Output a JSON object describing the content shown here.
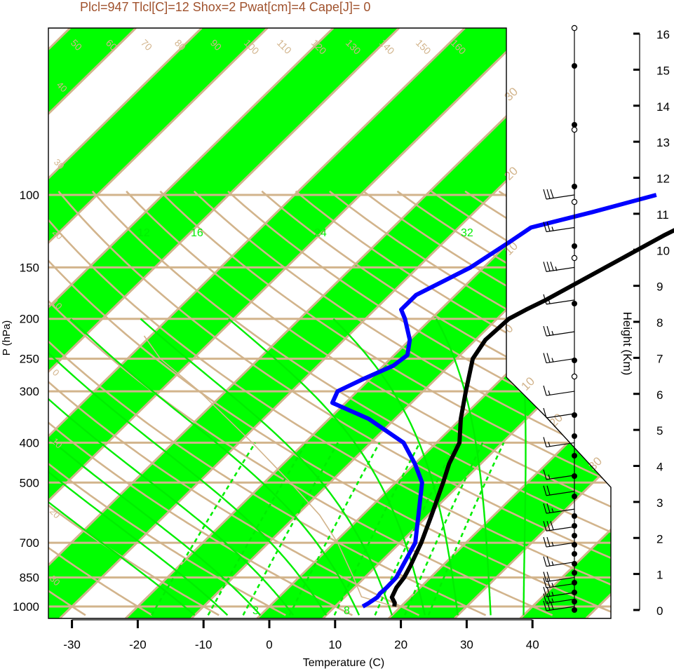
{
  "title": "Plcl=947 Tlcl[C]=12 Shox=2 Pwat[cm]=4 Cape[J]= 0",
  "colors": {
    "green_band": "#00ff00",
    "tan": "#d2b48c",
    "temp": "#000000",
    "dewpoint": "#0000ff",
    "mixing": "#00ee00",
    "title": "#a0522d"
  },
  "chart_data": {
    "type": "skew-t",
    "title": "Plcl=947 Tlcl[C]=12 Shox=2 Pwat[cm]=4 Cape[J]= 0",
    "xlabel": "Temperature (C)",
    "ylabel": "P (hPa)",
    "height_label": "Height (Km)",
    "xlim": [
      -33,
      40
    ],
    "ylim": [
      1050,
      100
    ],
    "pressure_ticks": [
      1000,
      850,
      700,
      500,
      400,
      300,
      250,
      200,
      150,
      100
    ],
    "pressure_tick_labels": [
      "1000",
      "850",
      "700",
      "500",
      "400",
      "300",
      "250",
      "200",
      "150",
      "100"
    ],
    "temperature_ticks": [
      -30,
      -20,
      -10,
      0,
      10,
      20,
      30,
      40
    ],
    "temperature_tick_labels": [
      "-30",
      "-20",
      "-10",
      "0",
      "10",
      "20",
      "30",
      "40"
    ],
    "height_ticks": [
      0,
      1,
      2,
      3,
      4,
      5,
      6,
      7,
      8,
      9,
      10,
      11,
      12,
      13,
      14,
      15,
      16
    ],
    "height_tick_labels": [
      "0",
      "1",
      "2",
      "3",
      "4",
      "5",
      "6",
      "7",
      "8",
      "9",
      "10",
      "11",
      "12",
      "13",
      "14",
      "15",
      "16"
    ],
    "mixing_ratio_labels": [
      "3",
      "8",
      "12",
      "16",
      "24",
      "32"
    ],
    "potential_temp_labels": [
      "50",
      "60",
      "70",
      "80",
      "90",
      "100",
      "110",
      "120",
      "130",
      "140",
      "150",
      "160"
    ],
    "isotherm_labels": [
      "30",
      "20",
      "10",
      "0",
      "-10",
      "-20",
      "-30",
      "-40"
    ],
    "temperature_profile": [
      {
        "p": 1000,
        "t": 19.0
      },
      {
        "p": 980,
        "t": 18.5
      },
      {
        "p": 950,
        "t": 17.2
      },
      {
        "p": 900,
        "t": 16.4
      },
      {
        "p": 850,
        "t": 16.0
      },
      {
        "p": 800,
        "t": 15.2
      },
      {
        "p": 700,
        "t": 13.2
      },
      {
        "p": 600,
        "t": 10.5
      },
      {
        "p": 500,
        "t": 7.2
      },
      {
        "p": 450,
        "t": 5.2
      },
      {
        "p": 400,
        "t": 3.5
      },
      {
        "p": 350,
        "t": 0.0
      },
      {
        "p": 300,
        "t": -3.5
      },
      {
        "p": 250,
        "t": -7.5
      },
      {
        "p": 225,
        "t": -8.5
      },
      {
        "p": 200,
        "t": -8.2
      },
      {
        "p": 190,
        "t": -7.0
      },
      {
        "p": 180,
        "t": -5.5
      },
      {
        "p": 150,
        "t": -1.5
      },
      {
        "p": 125,
        "t": 2.5
      },
      {
        "p": 110,
        "t": 6.0
      },
      {
        "p": 100,
        "t": 10.0
      }
    ],
    "dewpoint_profile": [
      {
        "p": 1000,
        "t": 14.2
      },
      {
        "p": 980,
        "t": 14.6
      },
      {
        "p": 950,
        "t": 15.0
      },
      {
        "p": 930,
        "t": 14.8
      },
      {
        "p": 900,
        "t": 14.9
      },
      {
        "p": 850,
        "t": 14.8
      },
      {
        "p": 700,
        "t": 12.3
      },
      {
        "p": 600,
        "t": 8.5
      },
      {
        "p": 500,
        "t": 4.0
      },
      {
        "p": 450,
        "t": 0.0
      },
      {
        "p": 400,
        "t": -5.0
      },
      {
        "p": 350,
        "t": -14.0
      },
      {
        "p": 320,
        "t": -22.0
      },
      {
        "p": 300,
        "t": -23.0
      },
      {
        "p": 280,
        "t": -21.0
      },
      {
        "p": 260,
        "t": -18.5
      },
      {
        "p": 245,
        "t": -18.0
      },
      {
        "p": 225,
        "t": -20.0
      },
      {
        "p": 200,
        "t": -24.0
      },
      {
        "p": 190,
        "t": -26.0
      },
      {
        "p": 175,
        "t": -26.0
      },
      {
        "p": 150,
        "t": -22.0
      },
      {
        "p": 130,
        "t": -20.0
      },
      {
        "p": 120,
        "t": -19.0
      },
      {
        "p": 110,
        "t": -12.0
      },
      {
        "p": 100,
        "t": -5.0
      }
    ],
    "wind_profile": [
      {
        "p": 1000,
        "speed": 30
      },
      {
        "p": 960,
        "speed": 25
      },
      {
        "p": 925,
        "speed": 25
      },
      {
        "p": 880,
        "speed": 25
      },
      {
        "p": 850,
        "speed": 20
      },
      {
        "p": 780,
        "speed": 25
      },
      {
        "p": 700,
        "speed": 25
      },
      {
        "p": 640,
        "speed": 30
      },
      {
        "p": 580,
        "speed": 25
      },
      {
        "p": 525,
        "speed": 20
      },
      {
        "p": 480,
        "speed": 15
      },
      {
        "p": 400,
        "speed": 15
      },
      {
        "p": 340,
        "speed": 10
      },
      {
        "p": 300,
        "speed": 15
      },
      {
        "p": 250,
        "speed": 25
      },
      {
        "p": 215,
        "speed": 25
      },
      {
        "p": 180,
        "speed": 15
      },
      {
        "p": 150,
        "speed": 35
      },
      {
        "p": 120,
        "speed": 25
      },
      {
        "p": 100,
        "speed": 30
      }
    ],
    "grid": true
  }
}
